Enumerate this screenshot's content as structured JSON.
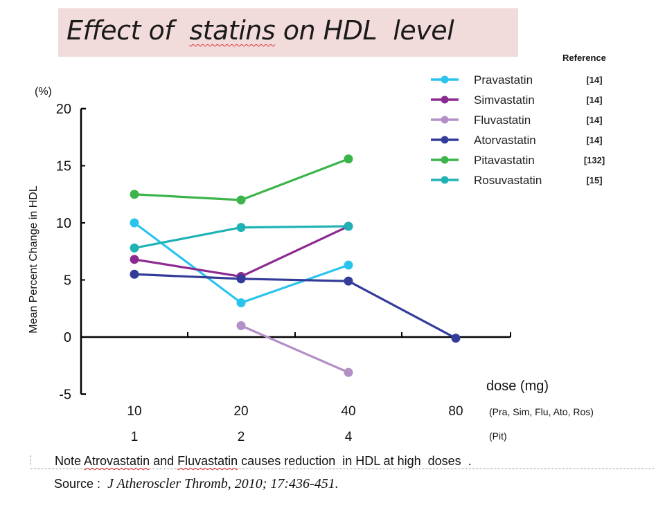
{
  "page_title": {
    "pre": "Effect of  ",
    "underlined": "statins",
    "post": " on HDL  level"
  },
  "chart_data": {
    "type": "line",
    "title": "Effect of statins on HDL level",
    "ylabel": "Mean Percent Change in HDL",
    "yunit": "(%)",
    "xlabel": "dose (mg)",
    "ylim": [
      -5,
      20
    ],
    "yticks": [
      "20",
      "15",
      "10",
      "5",
      "0",
      "-5"
    ],
    "ytick_values": [
      20,
      15,
      10,
      5,
      0,
      -5
    ],
    "categories": [
      "10",
      "20",
      "40",
      "80"
    ],
    "secondary_categories": [
      "1",
      "2",
      "4",
      ""
    ],
    "category_note": "(Pra, Sim, Flu, Ato, Ros)",
    "secondary_note": "(Pit)",
    "legend_header": "Reference",
    "legend_position": "top-right",
    "grid": false,
    "series": [
      {
        "name": "Pravastatin",
        "ref": "[14]",
        "color": "#29c4ee",
        "values": [
          10.0,
          3.0,
          6.3,
          null
        ]
      },
      {
        "name": "Simvastatin",
        "ref": "[14]",
        "color": "#8b2a90",
        "values": [
          6.8,
          5.3,
          9.7,
          null
        ]
      },
      {
        "name": "Fluvastatin",
        "ref": "[14]",
        "color": "#b48fc6",
        "values": [
          null,
          1.0,
          -3.1,
          null
        ]
      },
      {
        "name": "Atorvastatin",
        "ref": "[14]",
        "color": "#343c9a",
        "values": [
          5.5,
          5.1,
          4.9,
          -0.1
        ]
      },
      {
        "name": "Pitavastatin",
        "ref": "[132]",
        "color": "#3cb44a",
        "values": [
          12.5,
          12.0,
          15.6,
          null
        ]
      },
      {
        "name": "Rosuvastatin",
        "ref": "[15]",
        "color": "#1fb2b5",
        "values": [
          7.8,
          9.6,
          9.7,
          null
        ]
      }
    ]
  },
  "footer": {
    "note_pre": "Note ",
    "note_word1": "Atrovastatin",
    "note_mid": " and ",
    "note_word2": "Fluvastatin",
    "note_post": " causes reduction  in HDL at high  doses  .",
    "source_label": "Source :",
    "source_citation": "J Atheroscler Thromb, 2010; 17:436-451."
  }
}
